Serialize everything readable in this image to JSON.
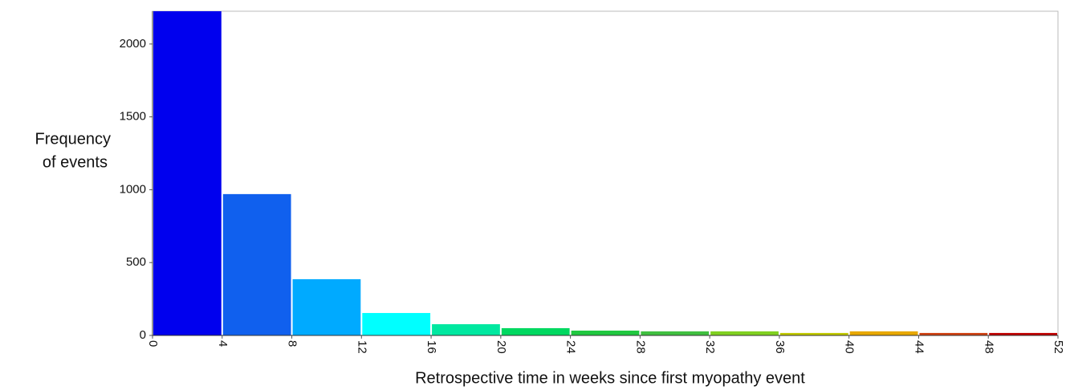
{
  "chart_data": {
    "type": "histogram",
    "x_label": "Retrospective time in weeks since first myopathy event",
    "y_label_lines": [
      "Frequency",
      "of events"
    ],
    "bins": [
      0,
      4,
      8,
      12,
      16,
      20,
      24,
      28,
      32,
      36,
      40,
      44,
      48,
      52
    ],
    "counts": [
      2225,
      970,
      386,
      154,
      77,
      50,
      33,
      28,
      28,
      17,
      28,
      17,
      17
    ],
    "colors": [
      "#0000ee",
      "#1060ee",
      "#00aaff",
      "#00ffff",
      "#00e8a0",
      "#00d860",
      "#20c840",
      "#40c040",
      "#80d020",
      "#c0c800",
      "#e8a800",
      "#d04010",
      "#c00000"
    ],
    "xlim": [
      0,
      52
    ],
    "ylim": [
      0,
      2225
    ],
    "xticks": [
      0,
      4,
      8,
      12,
      16,
      20,
      24,
      28,
      32,
      36,
      40,
      44,
      48,
      52
    ],
    "yticks": [
      0,
      500,
      1000,
      1500,
      2000
    ],
    "grid": false
  }
}
